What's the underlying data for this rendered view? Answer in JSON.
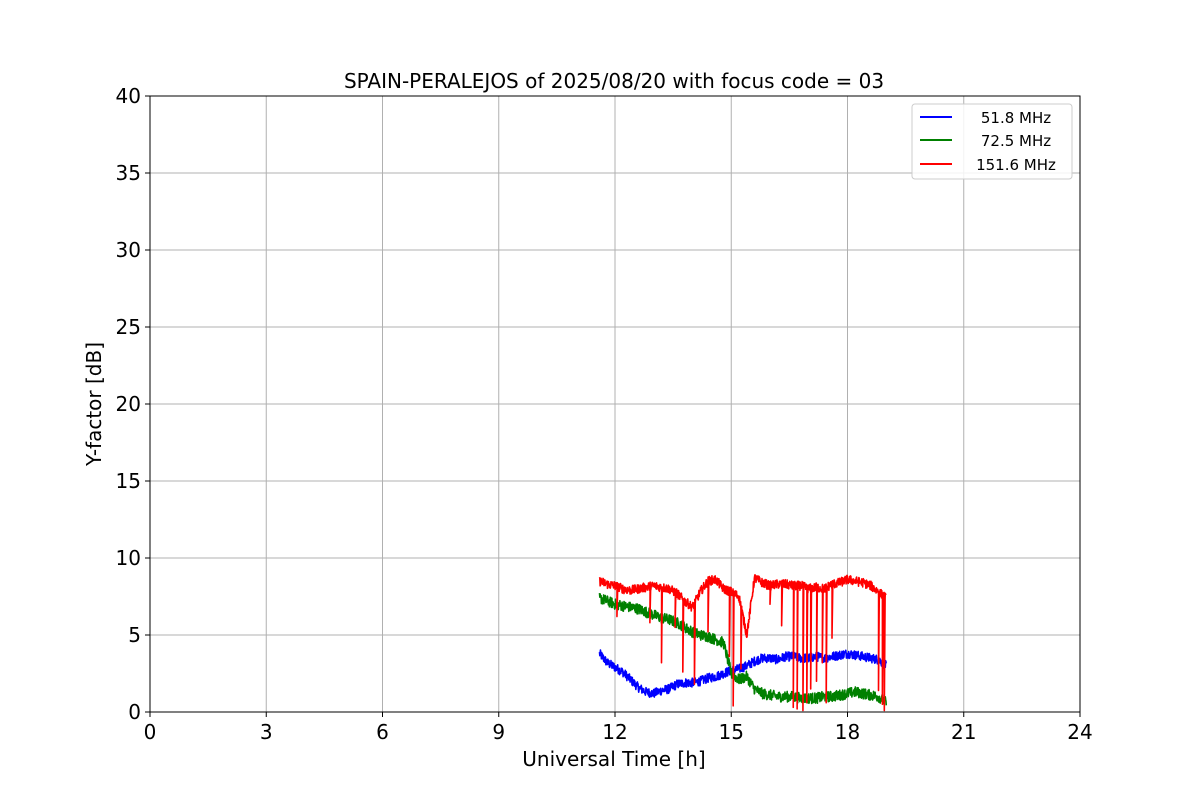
{
  "chart_data": {
    "type": "line",
    "title": "SPAIN-PERALEJOS of 2025/08/20 with focus code = 03",
    "xlabel": "Universal Time [h]",
    "ylabel": "Y-factor [dB]",
    "xlim": [
      0,
      24
    ],
    "ylim": [
      0,
      40
    ],
    "xticks": [
      "0",
      "3",
      "6",
      "9",
      "12",
      "15",
      "18",
      "21",
      "24"
    ],
    "yticks": [
      "0",
      "5",
      "10",
      "15",
      "20",
      "25",
      "30",
      "35",
      "40"
    ],
    "grid": true,
    "legend_position": "top-right",
    "series": [
      {
        "name": "51.8 MHz",
        "color": "#0000ff",
        "x": [
          11.6,
          11.8,
          12.0,
          12.2,
          12.4,
          12.6,
          12.8,
          13.0,
          13.2,
          13.4,
          13.6,
          13.8,
          14.0,
          14.2,
          14.4,
          14.6,
          14.8,
          15.0,
          15.2,
          15.4,
          15.6,
          15.8,
          16.0,
          16.2,
          16.4,
          16.6,
          16.8,
          17.0,
          17.2,
          17.4,
          17.6,
          17.8,
          18.0,
          18.2,
          18.4,
          18.6,
          18.8,
          19.0
        ],
        "y": [
          3.8,
          3.2,
          2.9,
          2.6,
          2.1,
          1.6,
          1.3,
          1.2,
          1.4,
          1.5,
          1.8,
          1.9,
          1.9,
          2.0,
          2.2,
          2.3,
          2.5,
          2.7,
          2.8,
          3.0,
          3.3,
          3.5,
          3.5,
          3.4,
          3.6,
          3.6,
          3.5,
          3.5,
          3.6,
          3.5,
          3.6,
          3.7,
          3.8,
          3.7,
          3.6,
          3.5,
          3.4,
          3.0
        ],
        "noise": 0.3
      },
      {
        "name": "72.5 MHz",
        "color": "#008000",
        "x": [
          11.6,
          11.8,
          12.0,
          12.2,
          12.4,
          12.6,
          12.8,
          13.0,
          13.2,
          13.4,
          13.6,
          13.8,
          14.0,
          14.2,
          14.4,
          14.6,
          14.8,
          15.0,
          15.2,
          15.4,
          15.6,
          15.8,
          16.0,
          16.2,
          16.4,
          16.6,
          16.8,
          17.0,
          17.2,
          17.4,
          17.6,
          17.8,
          18.0,
          18.2,
          18.4,
          18.6,
          18.8,
          19.0
        ],
        "y": [
          7.4,
          7.2,
          7.0,
          6.9,
          6.8,
          6.7,
          6.5,
          6.3,
          6.1,
          6.0,
          5.8,
          5.5,
          5.2,
          5.0,
          4.9,
          4.7,
          4.5,
          2.5,
          2.1,
          2.3,
          1.5,
          1.2,
          1.1,
          1.0,
          1.0,
          1.0,
          0.9,
          0.9,
          0.9,
          1.0,
          1.0,
          1.1,
          1.2,
          1.3,
          1.2,
          1.1,
          1.0,
          0.6
        ],
        "noise": 0.35
      },
      {
        "name": "151.6 MHz",
        "color": "#ff0000",
        "x": [
          11.6,
          11.8,
          12.0,
          12.2,
          12.4,
          12.6,
          12.8,
          13.0,
          13.2,
          13.4,
          13.6,
          13.8,
          14.0,
          14.2,
          14.4,
          14.6,
          14.8,
          15.0,
          15.2,
          15.4,
          15.6,
          15.8,
          16.0,
          16.2,
          16.4,
          16.6,
          16.8,
          17.0,
          17.2,
          17.4,
          17.6,
          17.8,
          18.0,
          18.2,
          18.4,
          18.6,
          18.8,
          19.0
        ],
        "y": [
          8.5,
          8.3,
          8.2,
          8.0,
          7.9,
          8.0,
          8.1,
          8.2,
          8.1,
          8.0,
          7.7,
          7.2,
          6.8,
          7.8,
          8.5,
          8.6,
          8.0,
          7.8,
          7.5,
          5.0,
          8.7,
          8.4,
          8.2,
          8.3,
          8.3,
          8.2,
          8.2,
          8.0,
          8.1,
          8.0,
          8.3,
          8.4,
          8.6,
          8.5,
          8.4,
          8.2,
          7.8,
          7.4
        ],
        "noise": 0.3,
        "dropouts": [
          [
            12.05,
            6.2
          ],
          [
            12.9,
            5.8
          ],
          [
            13.2,
            3.2
          ],
          [
            13.55,
            5.5
          ],
          [
            13.75,
            2.6
          ],
          [
            14.05,
            1.8
          ],
          [
            14.4,
            5.2
          ],
          [
            14.95,
            3.6
          ],
          [
            15.05,
            0.4
          ],
          [
            15.25,
            2.8
          ],
          [
            15.45,
            6.0
          ],
          [
            16.0,
            7.0
          ],
          [
            16.3,
            5.6
          ],
          [
            16.6,
            0.3
          ],
          [
            16.7,
            0.2
          ],
          [
            16.85,
            0.1
          ],
          [
            16.95,
            0.6
          ],
          [
            17.05,
            1.5
          ],
          [
            17.2,
            2.0
          ],
          [
            17.35,
            3.2
          ],
          [
            17.45,
            0.6
          ],
          [
            17.6,
            4.8
          ],
          [
            18.8,
            1.4
          ],
          [
            18.9,
            0.5
          ],
          [
            18.95,
            0.1
          ]
        ]
      }
    ]
  }
}
